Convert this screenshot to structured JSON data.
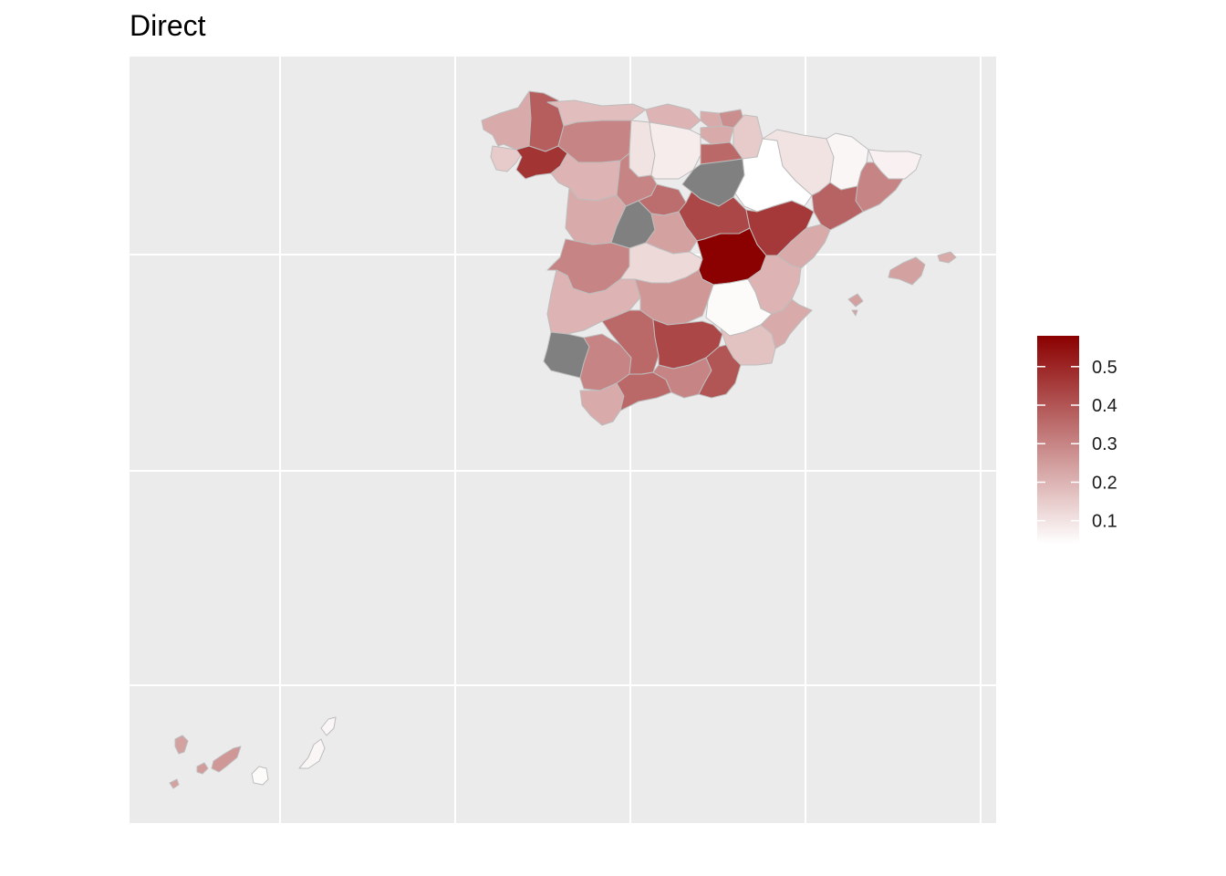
{
  "title": "Direct",
  "colors": {
    "panel": "#ebebeb",
    "grid": "#ffffff",
    "border": "#bdbdbd",
    "na": "#808080",
    "low": "#ffffff",
    "high": "#8b0000"
  },
  "legend": {
    "position": "right",
    "min": 0.04,
    "max": 0.58,
    "ticks": [
      0.1,
      0.2,
      0.3,
      0.4,
      0.5
    ],
    "tick_labels": [
      "0.1",
      "0.2",
      "0.3",
      "0.4",
      "0.5"
    ]
  },
  "chart_data": {
    "type": "heatmap",
    "title": "Direct",
    "grid": true,
    "axis_labels_shown": false,
    "fill_scale": {
      "low": 0.04,
      "high": 0.58
    },
    "regions": [
      {
        "id": "a-coruna",
        "value": 0.22
      },
      {
        "id": "lugo",
        "value": 0.38
      },
      {
        "id": "pontevedra",
        "value": 0.15
      },
      {
        "id": "ourense",
        "value": 0.47
      },
      {
        "id": "asturias",
        "value": 0.18
      },
      {
        "id": "cantabria",
        "value": 0.2
      },
      {
        "id": "bizkaia",
        "value": 0.22
      },
      {
        "id": "gipuzkoa",
        "value": 0.28
      },
      {
        "id": "navarra",
        "value": 0.15
      },
      {
        "id": "leon",
        "value": 0.3
      },
      {
        "id": "palencia",
        "value": 0.1
      },
      {
        "id": "burgos",
        "value": 0.08
      },
      {
        "id": "alava",
        "value": 0.22
      },
      {
        "id": "la-rioja",
        "value": 0.36
      },
      {
        "id": "zamora",
        "value": 0.2
      },
      {
        "id": "valladolid",
        "value": 0.3
      },
      {
        "id": "soria",
        "value": null
      },
      {
        "id": "zaragoza",
        "value": 0.04
      },
      {
        "id": "huesca",
        "value": 0.1
      },
      {
        "id": "lleida",
        "value": 0.06
      },
      {
        "id": "girona",
        "value": 0.07
      },
      {
        "id": "barcelona",
        "value": 0.3
      },
      {
        "id": "tarragona",
        "value": 0.37
      },
      {
        "id": "salamanca",
        "value": 0.22
      },
      {
        "id": "avila",
        "value": null
      },
      {
        "id": "segovia",
        "value": 0.35
      },
      {
        "id": "madrid",
        "value": 0.24
      },
      {
        "id": "guadalajara",
        "value": 0.43
      },
      {
        "id": "teruel",
        "value": 0.46
      },
      {
        "id": "castellon",
        "value": 0.22
      },
      {
        "id": "caceres",
        "value": 0.3
      },
      {
        "id": "toledo",
        "value": 0.12
      },
      {
        "id": "cuenca",
        "value": 0.58
      },
      {
        "id": "valencia",
        "value": 0.2
      },
      {
        "id": "badajoz",
        "value": 0.2
      },
      {
        "id": "ciudad-real",
        "value": 0.26
      },
      {
        "id": "albacete",
        "value": 0.05
      },
      {
        "id": "alicante",
        "value": 0.22
      },
      {
        "id": "huelva",
        "value": null
      },
      {
        "id": "sevilla",
        "value": 0.3
      },
      {
        "id": "cordoba",
        "value": 0.36
      },
      {
        "id": "jaen",
        "value": 0.43
      },
      {
        "id": "murcia",
        "value": 0.17
      },
      {
        "id": "cadiz",
        "value": 0.22
      },
      {
        "id": "malaga",
        "value": 0.36
      },
      {
        "id": "granada",
        "value": 0.3
      },
      {
        "id": "almeria",
        "value": 0.4
      },
      {
        "id": "mallorca",
        "value": 0.24
      },
      {
        "id": "menorca",
        "value": 0.22
      },
      {
        "id": "ibiza",
        "value": 0.24
      },
      {
        "id": "la-palma",
        "value": 0.24
      },
      {
        "id": "tenerife",
        "value": 0.26
      },
      {
        "id": "la-gomera",
        "value": 0.25
      },
      {
        "id": "el-hierro",
        "value": 0.24
      },
      {
        "id": "gran-canaria",
        "value": 0.05
      },
      {
        "id": "fuerteventura",
        "value": 0.06
      },
      {
        "id": "lanzarote",
        "value": 0.06
      }
    ]
  }
}
